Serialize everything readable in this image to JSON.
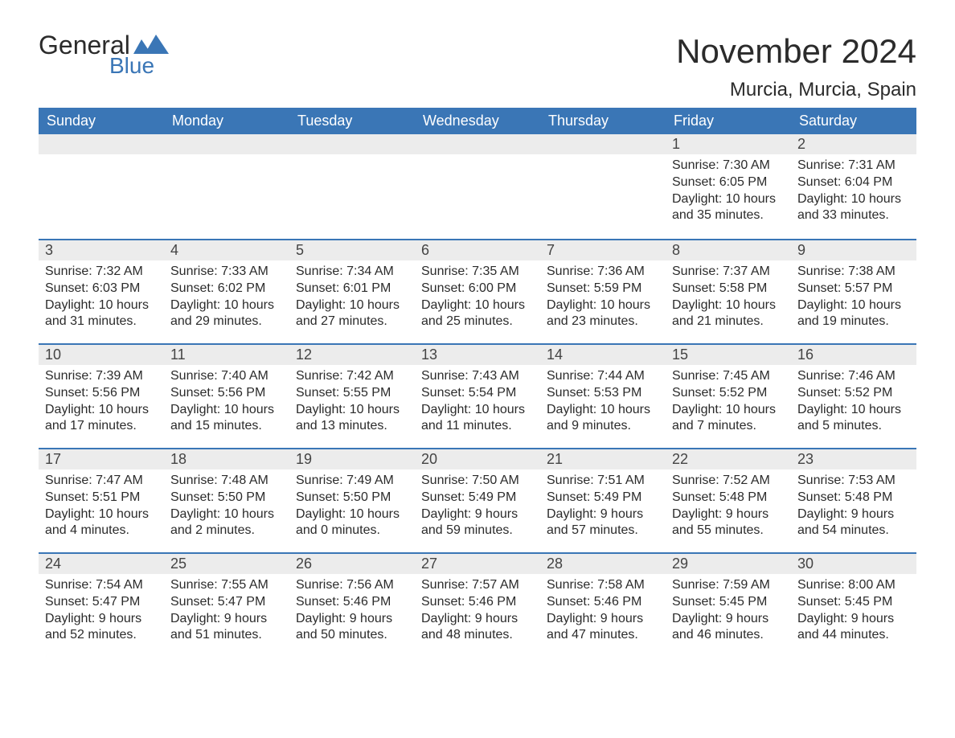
{
  "logo": {
    "word1": "General",
    "word2": "Blue",
    "accent_color": "#3a76b6",
    "text_color": "#2b2b2b"
  },
  "title": "November 2024",
  "location": "Murcia, Murcia, Spain",
  "colors": {
    "header_bg": "#3a76b6",
    "header_text": "#ffffff",
    "daynum_bg": "#ececec",
    "row_border": "#3a76b6",
    "body_text": "#2b2b2b",
    "page_bg": "#ffffff"
  },
  "fonts": {
    "title_size": 42,
    "location_size": 24,
    "header_size": 18,
    "daynum_size": 18,
    "body_size": 16
  },
  "weekdays": [
    "Sunday",
    "Monday",
    "Tuesday",
    "Wednesday",
    "Thursday",
    "Friday",
    "Saturday"
  ],
  "weeks": [
    [
      null,
      null,
      null,
      null,
      null,
      {
        "n": "1",
        "sunrise": "Sunrise: 7:30 AM",
        "sunset": "Sunset: 6:05 PM",
        "day1": "Daylight: 10 hours",
        "day2": "and 35 minutes."
      },
      {
        "n": "2",
        "sunrise": "Sunrise: 7:31 AM",
        "sunset": "Sunset: 6:04 PM",
        "day1": "Daylight: 10 hours",
        "day2": "and 33 minutes."
      }
    ],
    [
      {
        "n": "3",
        "sunrise": "Sunrise: 7:32 AM",
        "sunset": "Sunset: 6:03 PM",
        "day1": "Daylight: 10 hours",
        "day2": "and 31 minutes."
      },
      {
        "n": "4",
        "sunrise": "Sunrise: 7:33 AM",
        "sunset": "Sunset: 6:02 PM",
        "day1": "Daylight: 10 hours",
        "day2": "and 29 minutes."
      },
      {
        "n": "5",
        "sunrise": "Sunrise: 7:34 AM",
        "sunset": "Sunset: 6:01 PM",
        "day1": "Daylight: 10 hours",
        "day2": "and 27 minutes."
      },
      {
        "n": "6",
        "sunrise": "Sunrise: 7:35 AM",
        "sunset": "Sunset: 6:00 PM",
        "day1": "Daylight: 10 hours",
        "day2": "and 25 minutes."
      },
      {
        "n": "7",
        "sunrise": "Sunrise: 7:36 AM",
        "sunset": "Sunset: 5:59 PM",
        "day1": "Daylight: 10 hours",
        "day2": "and 23 minutes."
      },
      {
        "n": "8",
        "sunrise": "Sunrise: 7:37 AM",
        "sunset": "Sunset: 5:58 PM",
        "day1": "Daylight: 10 hours",
        "day2": "and 21 minutes."
      },
      {
        "n": "9",
        "sunrise": "Sunrise: 7:38 AM",
        "sunset": "Sunset: 5:57 PM",
        "day1": "Daylight: 10 hours",
        "day2": "and 19 minutes."
      }
    ],
    [
      {
        "n": "10",
        "sunrise": "Sunrise: 7:39 AM",
        "sunset": "Sunset: 5:56 PM",
        "day1": "Daylight: 10 hours",
        "day2": "and 17 minutes."
      },
      {
        "n": "11",
        "sunrise": "Sunrise: 7:40 AM",
        "sunset": "Sunset: 5:56 PM",
        "day1": "Daylight: 10 hours",
        "day2": "and 15 minutes."
      },
      {
        "n": "12",
        "sunrise": "Sunrise: 7:42 AM",
        "sunset": "Sunset: 5:55 PM",
        "day1": "Daylight: 10 hours",
        "day2": "and 13 minutes."
      },
      {
        "n": "13",
        "sunrise": "Sunrise: 7:43 AM",
        "sunset": "Sunset: 5:54 PM",
        "day1": "Daylight: 10 hours",
        "day2": "and 11 minutes."
      },
      {
        "n": "14",
        "sunrise": "Sunrise: 7:44 AM",
        "sunset": "Sunset: 5:53 PM",
        "day1": "Daylight: 10 hours",
        "day2": "and 9 minutes."
      },
      {
        "n": "15",
        "sunrise": "Sunrise: 7:45 AM",
        "sunset": "Sunset: 5:52 PM",
        "day1": "Daylight: 10 hours",
        "day2": "and 7 minutes."
      },
      {
        "n": "16",
        "sunrise": "Sunrise: 7:46 AM",
        "sunset": "Sunset: 5:52 PM",
        "day1": "Daylight: 10 hours",
        "day2": "and 5 minutes."
      }
    ],
    [
      {
        "n": "17",
        "sunrise": "Sunrise: 7:47 AM",
        "sunset": "Sunset: 5:51 PM",
        "day1": "Daylight: 10 hours",
        "day2": "and 4 minutes."
      },
      {
        "n": "18",
        "sunrise": "Sunrise: 7:48 AM",
        "sunset": "Sunset: 5:50 PM",
        "day1": "Daylight: 10 hours",
        "day2": "and 2 minutes."
      },
      {
        "n": "19",
        "sunrise": "Sunrise: 7:49 AM",
        "sunset": "Sunset: 5:50 PM",
        "day1": "Daylight: 10 hours",
        "day2": "and 0 minutes."
      },
      {
        "n": "20",
        "sunrise": "Sunrise: 7:50 AM",
        "sunset": "Sunset: 5:49 PM",
        "day1": "Daylight: 9 hours",
        "day2": "and 59 minutes."
      },
      {
        "n": "21",
        "sunrise": "Sunrise: 7:51 AM",
        "sunset": "Sunset: 5:49 PM",
        "day1": "Daylight: 9 hours",
        "day2": "and 57 minutes."
      },
      {
        "n": "22",
        "sunrise": "Sunrise: 7:52 AM",
        "sunset": "Sunset: 5:48 PM",
        "day1": "Daylight: 9 hours",
        "day2": "and 55 minutes."
      },
      {
        "n": "23",
        "sunrise": "Sunrise: 7:53 AM",
        "sunset": "Sunset: 5:48 PM",
        "day1": "Daylight: 9 hours",
        "day2": "and 54 minutes."
      }
    ],
    [
      {
        "n": "24",
        "sunrise": "Sunrise: 7:54 AM",
        "sunset": "Sunset: 5:47 PM",
        "day1": "Daylight: 9 hours",
        "day2": "and 52 minutes."
      },
      {
        "n": "25",
        "sunrise": "Sunrise: 7:55 AM",
        "sunset": "Sunset: 5:47 PM",
        "day1": "Daylight: 9 hours",
        "day2": "and 51 minutes."
      },
      {
        "n": "26",
        "sunrise": "Sunrise: 7:56 AM",
        "sunset": "Sunset: 5:46 PM",
        "day1": "Daylight: 9 hours",
        "day2": "and 50 minutes."
      },
      {
        "n": "27",
        "sunrise": "Sunrise: 7:57 AM",
        "sunset": "Sunset: 5:46 PM",
        "day1": "Daylight: 9 hours",
        "day2": "and 48 minutes."
      },
      {
        "n": "28",
        "sunrise": "Sunrise: 7:58 AM",
        "sunset": "Sunset: 5:46 PM",
        "day1": "Daylight: 9 hours",
        "day2": "and 47 minutes."
      },
      {
        "n": "29",
        "sunrise": "Sunrise: 7:59 AM",
        "sunset": "Sunset: 5:45 PM",
        "day1": "Daylight: 9 hours",
        "day2": "and 46 minutes."
      },
      {
        "n": "30",
        "sunrise": "Sunrise: 8:00 AM",
        "sunset": "Sunset: 5:45 PM",
        "day1": "Daylight: 9 hours",
        "day2": "and 44 minutes."
      }
    ]
  ]
}
